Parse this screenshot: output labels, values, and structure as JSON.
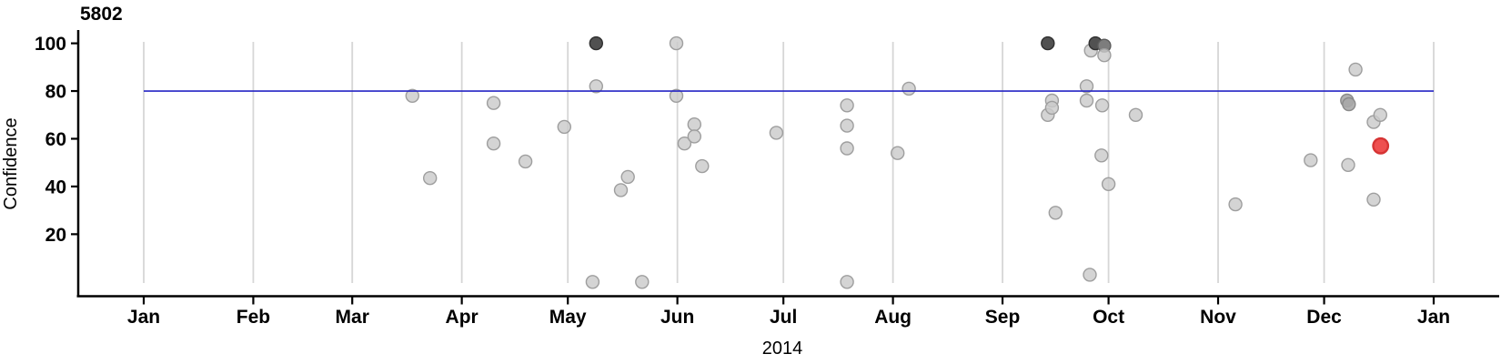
{
  "chart_data": {
    "type": "scatter",
    "title": "5802",
    "ylabel": "Confidence",
    "xlabel": "2014",
    "y_ticks": [
      20,
      40,
      60,
      80,
      100
    ],
    "ylim": [
      0,
      100
    ],
    "x_ticks": [
      {
        "label": "Jan",
        "doy": 0
      },
      {
        "label": "Feb",
        "doy": 31
      },
      {
        "label": "Mar",
        "doy": 59
      },
      {
        "label": "Apr",
        "doy": 90
      },
      {
        "label": "May",
        "doy": 120
      },
      {
        "label": "Jun",
        "doy": 151
      },
      {
        "label": "Jul",
        "doy": 181
      },
      {
        "label": "Aug",
        "doy": 212
      },
      {
        "label": "Sep",
        "doy": 243
      },
      {
        "label": "Oct",
        "doy": 273
      },
      {
        "label": "Nov",
        "doy": 304
      },
      {
        "label": "Dec",
        "doy": 334
      },
      {
        "label": "Jan",
        "doy": 365
      }
    ],
    "grid": true,
    "legend": "none",
    "reference_line": {
      "value": 80,
      "color": "#2525c4"
    },
    "point_colors": {
      "light": "#cbcbcb",
      "mid": "#a9a9a9",
      "middark": "#7d7d7d",
      "dark": "#515151",
      "red": "#ee4f4f"
    },
    "points": [
      {
        "doy": 76,
        "value": 78,
        "shade": "light"
      },
      {
        "doy": 81,
        "value": 43.5,
        "shade": "light"
      },
      {
        "doy": 99,
        "value": 75,
        "shade": "light"
      },
      {
        "doy": 99,
        "value": 58,
        "shade": "light"
      },
      {
        "doy": 108,
        "value": 50.5,
        "shade": "light"
      },
      {
        "doy": 119,
        "value": 65,
        "shade": "light"
      },
      {
        "doy": 127,
        "value": 0,
        "shade": "light"
      },
      {
        "doy": 128,
        "value": 100,
        "shade": "dark"
      },
      {
        "doy": 128,
        "value": 82,
        "shade": "light"
      },
      {
        "doy": 135,
        "value": 38.5,
        "shade": "light"
      },
      {
        "doy": 137,
        "value": 44,
        "shade": "light"
      },
      {
        "doy": 141,
        "value": 0,
        "shade": "light"
      },
      {
        "doy": 150.7,
        "value": 100,
        "shade": "light"
      },
      {
        "doy": 150.7,
        "value": 78,
        "shade": "light"
      },
      {
        "doy": 153,
        "value": 58,
        "shade": "light"
      },
      {
        "doy": 155.8,
        "value": 66,
        "shade": "light"
      },
      {
        "doy": 155.8,
        "value": 61,
        "shade": "light"
      },
      {
        "doy": 158,
        "value": 48.5,
        "shade": "light"
      },
      {
        "doy": 179,
        "value": 62.5,
        "shade": "light"
      },
      {
        "doy": 199,
        "value": 74,
        "shade": "light"
      },
      {
        "doy": 199,
        "value": 65.5,
        "shade": "light"
      },
      {
        "doy": 199,
        "value": 56,
        "shade": "light"
      },
      {
        "doy": 199,
        "value": 0,
        "shade": "light"
      },
      {
        "doy": 213.3,
        "value": 54,
        "shade": "light"
      },
      {
        "doy": 216.5,
        "value": 81,
        "shade": "light"
      },
      {
        "doy": 255.8,
        "value": 100,
        "shade": "dark"
      },
      {
        "doy": 255.8,
        "value": 70,
        "shade": "light"
      },
      {
        "doy": 257,
        "value": 76,
        "shade": "light"
      },
      {
        "doy": 257,
        "value": 73,
        "shade": "light"
      },
      {
        "doy": 258,
        "value": 29,
        "shade": "light"
      },
      {
        "doy": 266.8,
        "value": 82,
        "shade": "light"
      },
      {
        "doy": 266.8,
        "value": 76,
        "shade": "light"
      },
      {
        "doy": 267.7,
        "value": 3,
        "shade": "light"
      },
      {
        "doy": 268,
        "value": 97,
        "shade": "light"
      },
      {
        "doy": 269.3,
        "value": 100,
        "shade": "dark"
      },
      {
        "doy": 271.8,
        "value": 99,
        "shade": "middark"
      },
      {
        "doy": 271.8,
        "value": 95,
        "shade": "light"
      },
      {
        "doy": 271.2,
        "value": 74,
        "shade": "light"
      },
      {
        "doy": 271,
        "value": 53,
        "shade": "light"
      },
      {
        "doy": 273,
        "value": 41,
        "shade": "light"
      },
      {
        "doy": 280.7,
        "value": 70,
        "shade": "light"
      },
      {
        "doy": 308.9,
        "value": 32.5,
        "shade": "light"
      },
      {
        "doy": 330.2,
        "value": 51,
        "shade": "light"
      },
      {
        "doy": 340.5,
        "value": 76,
        "shade": "mid"
      },
      {
        "doy": 341,
        "value": 74.5,
        "shade": "mid"
      },
      {
        "doy": 340.8,
        "value": 49,
        "shade": "light"
      },
      {
        "doy": 342.9,
        "value": 89,
        "shade": "light"
      },
      {
        "doy": 348,
        "value": 67,
        "shade": "light"
      },
      {
        "doy": 348,
        "value": 34.5,
        "shade": "light"
      },
      {
        "doy": 349.9,
        "value": 70,
        "shade": "light"
      },
      {
        "doy": 350,
        "value": 57,
        "shade": "red"
      }
    ]
  }
}
